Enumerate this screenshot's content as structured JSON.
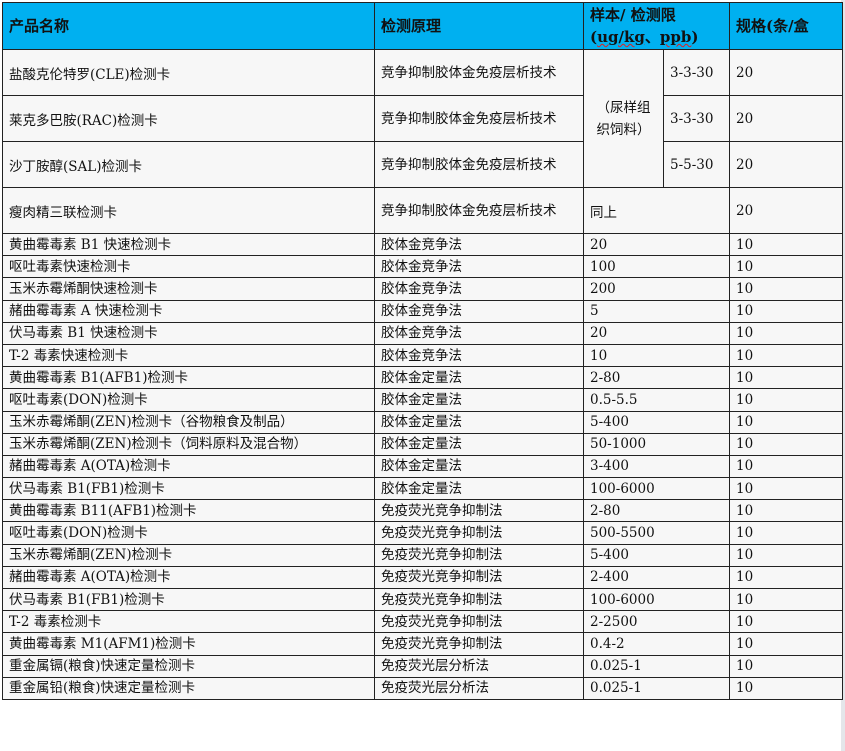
{
  "header": {
    "product_name": "产品名称",
    "principle": "检测原理",
    "limit_line1": "样本/ 检测限",
    "limit_line2_pre": "(",
    "limit_unit1": "ug/kg",
    "limit_sep": "、",
    "limit_unit2": "ppb",
    "limit_line2_post": ")",
    "spec": "规格(条/盒"
  },
  "merged_sample": "（尿样组织饲料）",
  "top_rows": [
    {
      "name": "盐酸克伦特罗(CLE)检测卡",
      "principle": "竞争抑制胶体金免疫层析技术",
      "limit": "3-3-30",
      "spec": "20"
    },
    {
      "name": "莱克多巴胺(RAC)检测卡",
      "principle": "竞争抑制胶体金免疫层析技术",
      "limit": "3-3-30",
      "spec": "20"
    },
    {
      "name": "沙丁胺醇(SAL)检测卡",
      "principle": "竞争抑制胶体金免疫层析技术",
      "limit": "5-5-30",
      "spec": "20"
    },
    {
      "name": "瘦肉精三联检测卡",
      "principle": "竞争抑制胶体金免疫层析技术",
      "limit": "同上",
      "spec": "20"
    }
  ],
  "rows": [
    {
      "name": "黄曲霉毒素 B1 快速检测卡",
      "principle": "胶体金竞争法",
      "limit": "20",
      "spec": "10"
    },
    {
      "name": "呕吐毒素快速检测卡",
      "principle": "胶体金竞争法",
      "limit": "100",
      "spec": "10"
    },
    {
      "name": "玉米赤霉烯酮快速检测卡",
      "principle": "胶体金竞争法",
      "limit": "200",
      "spec": "10"
    },
    {
      "name": "赭曲霉毒素 A 快速检测卡",
      "principle": "胶体金竞争法",
      "limit": "5",
      "spec": "10"
    },
    {
      "name": "伏马毒素  B1  快速检测卡",
      "principle": "胶体金竞争法",
      "limit": "20",
      "spec": "10"
    },
    {
      "name": "T-2 毒素快速检测卡",
      "principle": "胶体金竞争法",
      "limit": "10",
      "spec": "10"
    },
    {
      "name": "黄曲霉毒素 B1(AFB1)检测卡",
      "principle": "胶体金定量法",
      "limit": "2-80",
      "spec": "10"
    },
    {
      "name": "呕吐毒素(DON)检测卡",
      "principle": "胶体金定量法",
      "limit": "0.5-5.5",
      "spec": "10"
    },
    {
      "name": "玉米赤霉烯酮(ZEN)检测卡（谷物粮食及制品）",
      "principle": "胶体金定量法",
      "limit": "5-400",
      "spec": "10"
    },
    {
      "name": "玉米赤霉烯酮(ZEN)检测卡（饲料原料及混合物）",
      "principle": "胶体金定量法",
      "limit": "50-1000",
      "spec": "10"
    },
    {
      "name": "赭曲霉毒素 A(OTA)检测卡",
      "principle": "胶体金定量法",
      "limit": "3-400",
      "spec": "10"
    },
    {
      "name": "伏马毒素 B1(FB1)检测卡",
      "principle": "胶体金定量法",
      "limit": "100-6000",
      "spec": "10"
    },
    {
      "name": "黄曲霉毒素  B11(AFB1)检测卡",
      "principle": "免疫荧光竞争抑制法",
      "limit": "2-80",
      "spec": "10"
    },
    {
      "name": "呕吐毒素(DON)检测卡",
      "principle": "免疫荧光竞争抑制法",
      "limit": "500-5500",
      "spec": "10"
    },
    {
      "name": "玉米赤霉烯酮(ZEN)检测卡",
      "principle": "免疫荧光竞争抑制法",
      "limit": "5-400",
      "spec": "10"
    },
    {
      "name": "赭曲霉毒素 A(OTA)检测卡",
      "principle": "免疫荧光竞争抑制法",
      "limit": "2-400",
      "spec": "10"
    },
    {
      "name": "伏马毒素 B1(FB1)检测卡",
      "principle": "免疫荧光竞争抑制法",
      "limit": "100-6000",
      "spec": "10"
    },
    {
      "name": "T-2 毒素检测卡",
      "principle": "免疫荧光竞争抑制法",
      "limit": "2-2500",
      "spec": "10"
    },
    {
      "name": "黄曲霉毒素  M1(AFM1)检测卡",
      "principle": "免疫荧光竞争抑制法",
      "limit": "0.4-2",
      "spec": "10"
    },
    {
      "name": "重金属镉(粮食)快速定量检测卡",
      "principle": "免疫荧光层分析法",
      "limit": "0.025-1",
      "spec": "10"
    },
    {
      "name": "重金属铅(粮食)快速定量检测卡",
      "principle": "免疫荧光层分析法",
      "limit": "0.025-1",
      "spec": "10"
    }
  ]
}
